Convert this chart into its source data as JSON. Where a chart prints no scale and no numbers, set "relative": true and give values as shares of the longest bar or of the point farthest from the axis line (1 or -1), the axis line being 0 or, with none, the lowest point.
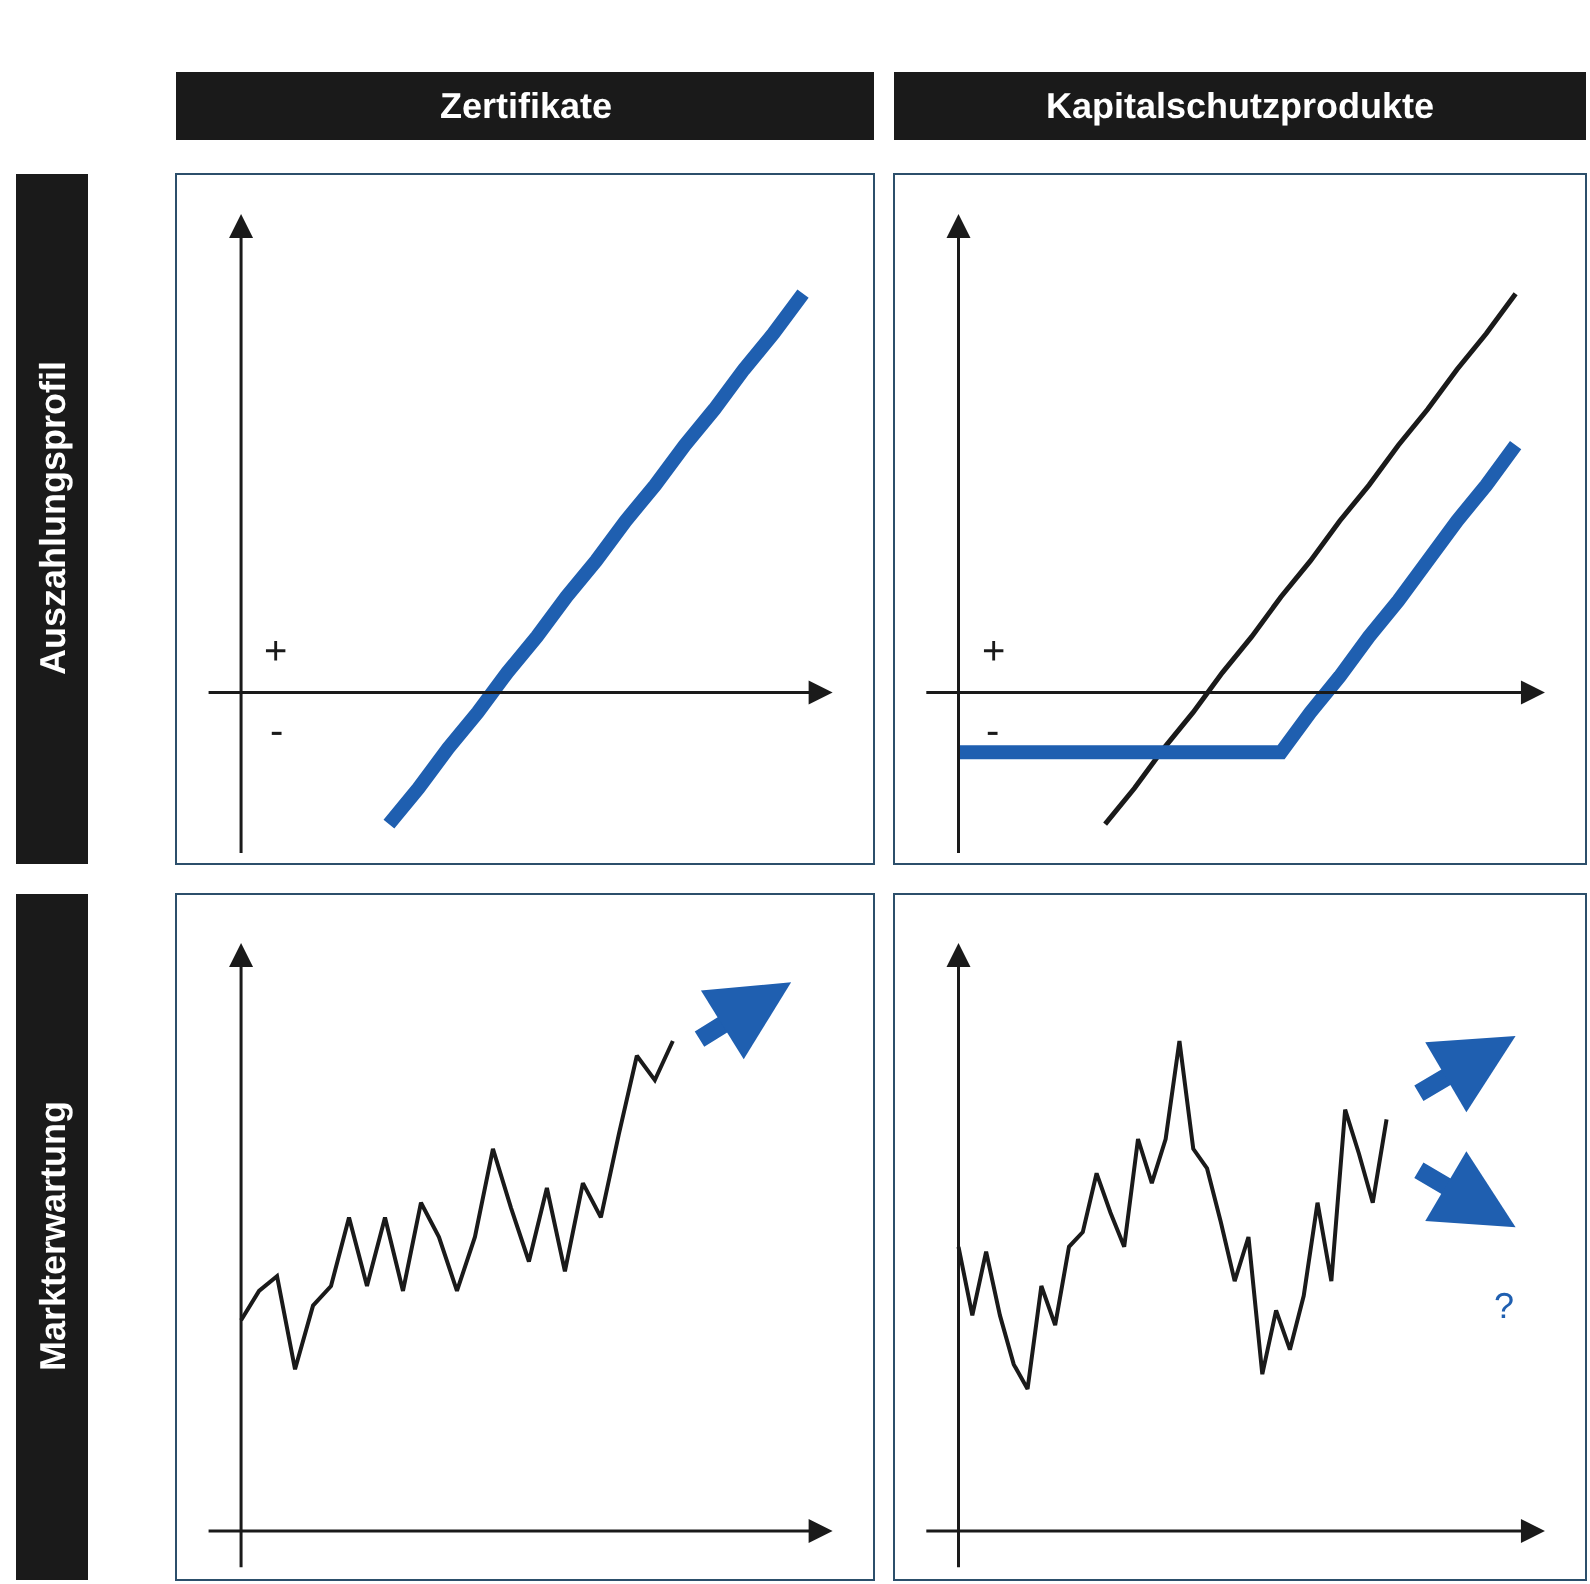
{
  "chart_data": [
    {
      "type": "line",
      "title": "Zertifikate",
      "ylabel": "Auszahlungsprofil",
      "relative": true,
      "annotations": [
        "+",
        "-"
      ],
      "categories": [
        null,
        null,
        null,
        null,
        null,
        null,
        null,
        null,
        null,
        null,
        null,
        null,
        null,
        null,
        null,
        null,
        null,
        null,
        null,
        null,
        null
      ],
      "series": [
        {
          "color": "#1f5fb0",
          "values": [
            null,
            null,
            null,
            null,
            null,
            -0.33,
            -0.24,
            -0.14,
            -0.05,
            0.05,
            0.14,
            0.24,
            0.33,
            0.43,
            0.52,
            0.62,
            0.71,
            0.81,
            0.9,
            1,
            null
          ]
        }
      ]
    },
    {
      "type": "line",
      "title": "Kapitalschutzprodukte",
      "relative": true,
      "annotations": [
        "+",
        "-"
      ],
      "categories": [
        null,
        null,
        null,
        null,
        null,
        null,
        null,
        null,
        null,
        null,
        null,
        null,
        null,
        null,
        null,
        null,
        null,
        null,
        null,
        null,
        null
      ],
      "series": [
        {
          "color": "#1a1a1a",
          "values": [
            null,
            null,
            null,
            null,
            null,
            -0.33,
            -0.24,
            -0.14,
            -0.05,
            0.05,
            0.14,
            0.24,
            0.33,
            0.43,
            0.52,
            0.62,
            0.71,
            0.81,
            0.9,
            1,
            null
          ]
        },
        {
          "color": "#1f5fb0",
          "values": [
            -0.15,
            -0.15,
            -0.15,
            -0.15,
            -0.15,
            -0.15,
            -0.15,
            -0.15,
            -0.15,
            -0.15,
            -0.15,
            -0.15,
            -0.05,
            0.04,
            0.14,
            0.23,
            0.33,
            0.43,
            0.52,
            0.62,
            null
          ]
        }
      ]
    },
    {
      "type": "line",
      "ylabel": "Markterwartung",
      "relative": true,
      "categories": [
        null,
        null,
        null,
        null,
        null,
        null,
        null,
        null,
        null,
        null,
        null,
        null,
        null,
        null,
        null,
        null,
        null,
        null,
        null,
        null,
        null,
        null,
        null,
        null,
        null
      ],
      "series": [
        {
          "color": "#1a1a1a",
          "values": [
            0.43,
            0.49,
            0.52,
            0.33,
            0.46,
            0.5,
            0.64,
            0.5,
            0.64,
            0.49,
            0.67,
            0.6,
            0.49,
            0.6,
            0.78,
            0.66,
            0.55,
            0.7,
            0.53,
            0.71,
            0.64,
            0.81,
            0.97,
            0.92,
            1
          ]
        }
      ]
    },
    {
      "type": "line",
      "relative": true,
      "annotations": [
        "?"
      ],
      "categories": [
        null,
        null,
        null,
        null,
        null,
        null,
        null,
        null,
        null,
        null,
        null,
        null,
        null,
        null,
        null,
        null,
        null,
        null,
        null,
        null,
        null,
        null,
        null,
        null,
        null,
        null,
        null,
        null,
        null,
        null,
        null,
        null
      ],
      "series": [
        {
          "color": "#1a1a1a",
          "values": [
            0.58,
            0.44,
            0.57,
            0.44,
            0.34,
            0.29,
            0.5,
            0.42,
            0.58,
            0.61,
            0.73,
            0.65,
            0.58,
            0.8,
            0.71,
            0.8,
            1,
            0.78,
            0.74,
            0.63,
            0.51,
            0.6,
            0.32,
            0.45,
            0.37,
            0.48,
            0.67,
            0.51,
            0.86,
            0.77,
            0.67,
            0.84
          ]
        }
      ]
    }
  ]
}
